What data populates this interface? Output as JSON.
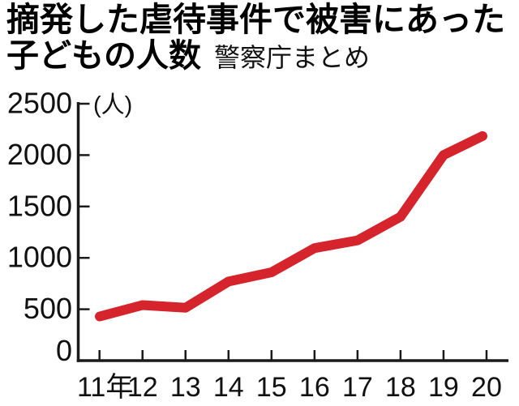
{
  "header": {
    "title_line1": "摘発した虐待事件で被害にあった",
    "title_line2": "子どもの人数",
    "subtitle": "警察庁まとめ"
  },
  "chart_data": {
    "type": "line",
    "title": "摘発した虐待事件で被害にあった子どもの人数",
    "subtitle": "警察庁まとめ",
    "unit_label": "(人)",
    "categories": [
      "11年",
      "12",
      "13",
      "14",
      "15",
      "16",
      "17",
      "18",
      "19",
      "20"
    ],
    "values": [
      430,
      540,
      515,
      770,
      860,
      1095,
      1170,
      1400,
      2000,
      2185
    ],
    "y_ticks": [
      0,
      500,
      1000,
      1500,
      2000,
      2500
    ],
    "ylim": [
      0,
      2500
    ],
    "grid": false,
    "legend": "none",
    "line_color": "#d5242c",
    "axis_color": "#1a1a1a"
  }
}
